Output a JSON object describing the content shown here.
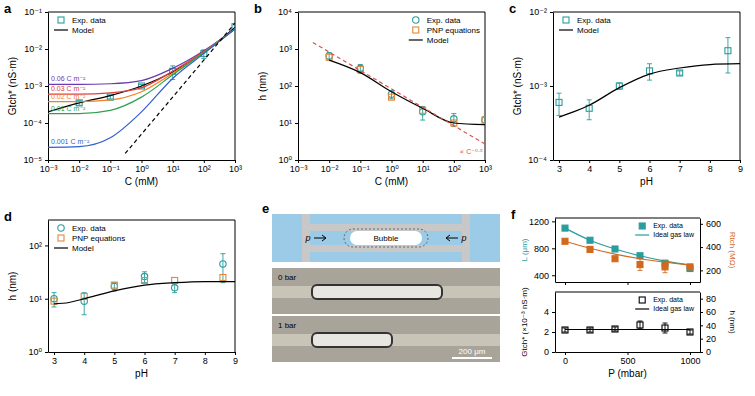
{
  "chart_data": [
    {
      "type": "scatter",
      "panel": "a",
      "xlabel": "C (mM)",
      "ylabel": "Gtch* (nS·m)",
      "log": true,
      "legend": "upper left",
      "xlim": [
        0.001,
        1000
      ],
      "xticks": [
        {
          "value": 0.001,
          "label": "10⁻³"
        },
        {
          "value": 0.01,
          "label": "10⁻²"
        },
        {
          "value": 0.1,
          "label": "10⁻¹"
        },
        {
          "value": 1,
          "label": "10⁰"
        },
        {
          "value": 10,
          "label": "10¹"
        },
        {
          "value": 100,
          "label": "10²"
        },
        {
          "value": 1000,
          "label": "10³"
        }
      ],
      "ylim": [
        1e-05,
        0.1
      ],
      "yticks": [
        {
          "value": 1e-05,
          "label": "10⁻⁵"
        },
        {
          "value": 0.0001,
          "label": "10⁻⁴"
        },
        {
          "value": 0.001,
          "label": "10⁻³"
        },
        {
          "value": 0.01,
          "label": "10⁻²"
        },
        {
          "value": 0.1,
          "label": "10⁻¹"
        }
      ],
      "series": [
        {
          "name": "Exp. data",
          "type": "scatter",
          "marker": "square",
          "color": "#2a9d9d",
          "x": [
            0.01,
            0.1,
            1,
            10,
            100,
            1000
          ],
          "values": [
            0.00035,
            0.0005,
            0.001,
            0.0025,
            0.0075,
            0.04
          ],
          "errors": [
            5e-05,
            5e-05,
            0.0001,
            0.001,
            0.002,
            0.008
          ]
        },
        {
          "name": "Model",
          "type": "line",
          "line_style": "solid",
          "color": "#000000",
          "x": [
            0.001,
            0.01,
            0.1,
            1,
            10,
            100,
            1000
          ],
          "values": [
            0.0002,
            0.00035,
            0.00055,
            0.001,
            0.0024,
            0.008,
            0.038
          ]
        },
        {
          "name": "0.06 C m⁻²",
          "type": "line",
          "line_style": "solid",
          "color": "#6a3ab0",
          "x": [
            0.001,
            0.01,
            0.1,
            1,
            10,
            100,
            1000
          ],
          "values": [
            0.0011,
            0.0011,
            0.00115,
            0.0014,
            0.003,
            0.009,
            0.035
          ]
        },
        {
          "name": "0.03 C m⁻²",
          "type": "line",
          "line_style": "solid",
          "color": "#e04040",
          "x": [
            0.001,
            0.01,
            0.1,
            1,
            10,
            100,
            1000
          ],
          "values": [
            0.0006,
            0.0006,
            0.00065,
            0.0009,
            0.0025,
            0.0085,
            0.035
          ]
        },
        {
          "name": "0.02 C m⁻²",
          "type": "line",
          "line_style": "solid",
          "color": "#f08020",
          "x": [
            0.001,
            0.01,
            0.1,
            1,
            10,
            100,
            1000
          ],
          "values": [
            0.00038,
            0.00038,
            0.00042,
            0.0007,
            0.0022,
            0.008,
            0.035
          ]
        },
        {
          "name": "0.01 C m⁻²",
          "type": "line",
          "line_style": "solid",
          "color": "#30a050",
          "x": [
            0.001,
            0.01,
            0.1,
            1,
            10,
            100,
            1000
          ],
          "values": [
            0.00018,
            0.00018,
            0.00022,
            0.0005,
            0.002,
            0.008,
            0.035
          ]
        },
        {
          "name": "0.001 C m⁻²",
          "type": "line",
          "line_style": "solid",
          "color": "#2f5fd0",
          "x": [
            0.001,
            0.01,
            0.1,
            1,
            10,
            100,
            1000
          ],
          "values": [
            2.2e-05,
            2.3e-05,
            4e-05,
            0.0002,
            0.0016,
            0.0075,
            0.035
          ]
        },
        {
          "type": "line",
          "line_style": "dashed",
          "color": "#000000",
          "x": [
            0.3,
            1000
          ],
          "values": [
            1.5e-05,
            0.05
          ]
        }
      ]
    },
    {
      "type": "scatter",
      "panel": "b",
      "xlabel": "C (mM)",
      "ylabel": "h (nm)",
      "log": true,
      "legend": "upper right",
      "xlim": [
        0.001,
        1000
      ],
      "xticks": [
        {
          "value": 0.001,
          "label": "10⁻³"
        },
        {
          "value": 0.01,
          "label": "10⁻²"
        },
        {
          "value": 0.1,
          "label": "10⁻¹"
        },
        {
          "value": 1,
          "label": "10⁰"
        },
        {
          "value": 10,
          "label": "10¹"
        },
        {
          "value": 100,
          "label": "10²"
        },
        {
          "value": 1000,
          "label": "10³"
        }
      ],
      "ylim": [
        1,
        10000
      ],
      "yticks": [
        {
          "value": 1,
          "label": "10⁰"
        },
        {
          "value": 10,
          "label": "10¹"
        },
        {
          "value": 100,
          "label": "10²"
        },
        {
          "value": 1000,
          "label": "10³"
        },
        {
          "value": 10000,
          "label": "10⁴"
        }
      ],
      "series": [
        {
          "name": "Exp. data",
          "type": "scatter",
          "marker": "circle",
          "color": "#2a9d9d",
          "x": [
            0.01,
            0.1,
            1,
            10,
            100,
            1000
          ],
          "values": [
            650,
            300,
            60,
            20,
            13,
            12
          ],
          "errors": [
            150,
            80,
            15,
            8,
            5,
            3
          ]
        },
        {
          "name": "PNP equations",
          "type": "scatter",
          "marker": "square",
          "color": "#e0883a",
          "x": [
            0.01,
            0.1,
            1,
            10,
            100,
            1000
          ],
          "values": [
            600,
            280,
            50,
            22,
            10,
            12
          ]
        },
        {
          "name": "Model",
          "type": "line",
          "line_style": "solid",
          "color": "#000000",
          "x": [
            0.01,
            0.1,
            1,
            10,
            100,
            1000
          ],
          "values": [
            500,
            230,
            70,
            25,
            10,
            9
          ]
        },
        {
          "name": "∝ C⁻⁰·⁵",
          "type": "line",
          "line_style": "dashed",
          "color": "#d9534f",
          "x": [
            0.003,
            1000
          ],
          "values": [
            1500,
            2.7
          ]
        }
      ]
    },
    {
      "type": "scatter",
      "panel": "c",
      "xlabel": "pH",
      "ylabel": "Gtch* (nS·m)",
      "log": "y",
      "legend": "upper left",
      "xlim": [
        2.8,
        9
      ],
      "xticks": [
        3,
        4,
        5,
        6,
        7,
        8,
        9
      ],
      "ylim": [
        0.0001,
        0.01
      ],
      "yticks": [
        {
          "value": 0.0001,
          "label": "10⁻⁴"
        },
        {
          "value": 0.001,
          "label": "10⁻³"
        },
        {
          "value": 0.01,
          "label": "10⁻²"
        }
      ],
      "series": [
        {
          "name": "Exp. data",
          "type": "scatter",
          "marker": "square",
          "color": "#2a9d9d",
          "x": [
            3,
            4,
            5,
            6,
            7,
            8.6
          ],
          "values": [
            0.0006,
            0.0005,
            0.001,
            0.0016,
            0.0015,
            0.003
          ],
          "errors": [
            0.0002,
            0.00015,
            0.0001,
            0.0004,
            0.0001,
            0.0015
          ]
        },
        {
          "name": "Model",
          "type": "line",
          "line_style": "solid",
          "color": "#000000",
          "x": [
            3,
            3.5,
            4,
            5,
            6,
            7,
            8,
            9
          ],
          "values": [
            0.00038,
            0.00045,
            0.00055,
            0.00095,
            0.00145,
            0.00175,
            0.00195,
            0.002
          ]
        }
      ]
    },
    {
      "type": "scatter",
      "panel": "d",
      "xlabel": "pH",
      "ylabel": "h (nm)",
      "log": "y",
      "legend": "upper left",
      "xlim": [
        2.8,
        9
      ],
      "xticks": [
        3,
        4,
        5,
        6,
        7,
        8,
        9
      ],
      "ylim": [
        1,
        300
      ],
      "yticks": [
        {
          "value": 1,
          "label": "10⁰"
        },
        {
          "value": 10,
          "label": "10¹"
        },
        {
          "value": 100,
          "label": "10²"
        }
      ],
      "series": [
        {
          "name": "Exp. data",
          "type": "scatter",
          "marker": "circle",
          "color": "#2a9d9d",
          "x": [
            3,
            4,
            5,
            6,
            7,
            8.6
          ],
          "values": [
            10,
            9,
            17,
            26,
            16,
            45
          ],
          "errors": [
            3,
            4,
            3,
            6,
            3,
            25
          ]
        },
        {
          "name": "PNP equations",
          "type": "scatter",
          "marker": "square",
          "color": "#e0883a",
          "x": [
            3,
            4,
            5,
            6,
            7,
            8.6
          ],
          "values": [
            9,
            11,
            18,
            22,
            22,
            25
          ]
        },
        {
          "name": "Model",
          "type": "line",
          "line_style": "solid",
          "color": "#000000",
          "x": [
            3,
            3.5,
            4,
            5,
            6,
            7,
            8,
            9
          ],
          "values": [
            8,
            8.5,
            10,
            14,
            18,
            20,
            21,
            21
          ]
        }
      ]
    },
    {
      "type": "diagram",
      "panel": "e",
      "labels": {
        "bubble": "Bubble",
        "pressure": "p",
        "images": [
          "0 bar",
          "1 bar"
        ],
        "scale_bar": "200 μm"
      }
    },
    {
      "type": "scatter",
      "panel": "f",
      "ylabel": "L (μm)",
      "y2label": "Rtch (MΩ)",
      "legend": "upper right",
      "tick_labels": "y",
      "xlim": [
        -80,
        1080
      ],
      "xticks": [
        0,
        500,
        1000
      ],
      "ylim": [
        300,
        1250
      ],
      "yticks": [
        400,
        800,
        1200
      ],
      "y2lim": [
        100,
        650
      ],
      "y2ticks": [
        200,
        400,
        600
      ],
      "series": [
        {
          "name": "Exp. data",
          "type": "scatter",
          "marker": "square-filled",
          "color": "#2a9d9d",
          "x": [
            0,
            200,
            400,
            600,
            800,
            1000
          ],
          "values": [
            1100,
            920,
            790,
            690,
            580,
            500
          ]
        },
        {
          "name": "Ideal gas law",
          "type": "line",
          "line_style": "solid",
          "color": "#2a9d9d",
          "x": [
            0,
            200,
            400,
            600,
            800,
            1000
          ],
          "values": [
            1100,
            920,
            790,
            690,
            610,
            550
          ]
        },
        {
          "type": "scatter",
          "marker": "square-filled",
          "color": "#d2691e",
          "axis": "y2",
          "x": [
            0,
            200,
            400,
            600,
            800,
            1000
          ],
          "values": [
            450,
            380,
            300,
            250,
            230,
            230
          ],
          "errors": [
            10,
            10,
            15,
            50,
            50,
            20
          ]
        },
        {
          "type": "line",
          "line_style": "solid",
          "color": "#d2691e",
          "axis": "y2",
          "x": [
            0,
            200,
            400,
            600,
            800,
            1000
          ],
          "values": [
            450,
            390,
            340,
            300,
            270,
            245
          ]
        }
      ]
    },
    {
      "type": "scatter",
      "xlabel": "P (mbar)",
      "ylabel": "Gtch* (×10⁻³ nS·m)",
      "y2label": "h (nm)",
      "legend": "upper right",
      "xlim": [
        -80,
        1080
      ],
      "xticks": [
        0,
        500,
        1000
      ],
      "ylim": [
        0,
        6
      ],
      "yticks": [
        0,
        2,
        4
      ],
      "y2lim": [
        0,
        90
      ],
      "y2ticks": [
        0,
        20,
        40,
        60,
        80
      ],
      "series": [
        {
          "name": "Exp. data",
          "type": "scatter",
          "marker": "square",
          "color": "#000000",
          "x": [
            0,
            200,
            400,
            600,
            800,
            1000
          ],
          "values": [
            2.2,
            2.2,
            2.3,
            2.7,
            2.4,
            2.0
          ],
          "errors": [
            0.2,
            0.2,
            0.2,
            0.4,
            0.5,
            0.2
          ]
        },
        {
          "name": "Ideal gas law",
          "type": "line",
          "line_style": "solid",
          "color": "#000000",
          "x": [
            0,
            1000
          ],
          "values": [
            2.25,
            2.25
          ]
        }
      ]
    }
  ]
}
